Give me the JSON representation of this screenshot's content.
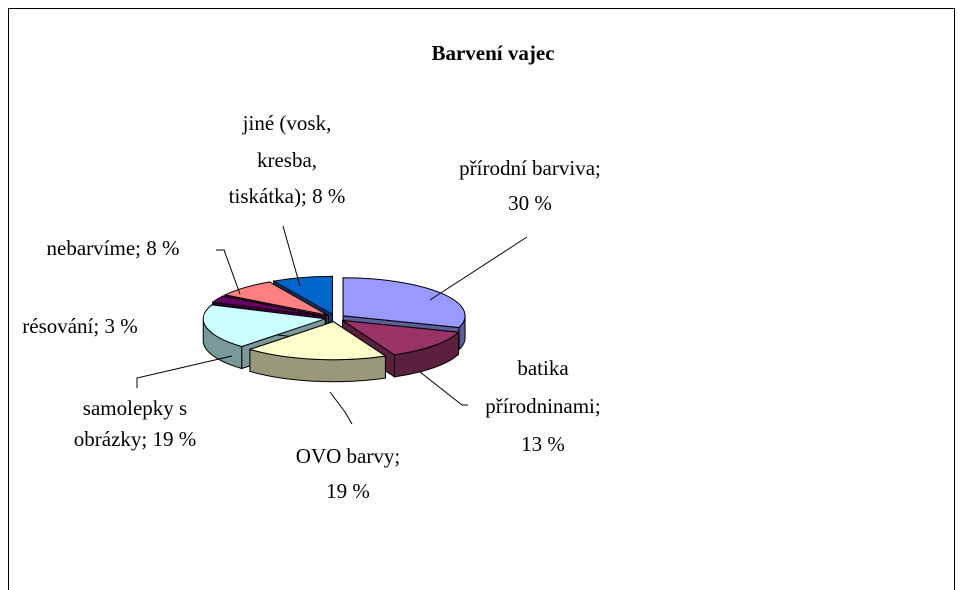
{
  "chart_data": {
    "type": "pie",
    "title": "Barvení vajec",
    "labels": [
      [
        "přírodní barviva;",
        "30 %"
      ],
      [
        "batika",
        "přírodninami;",
        "13 %"
      ],
      [
        "OVO barvy;",
        "19 %"
      ],
      [
        "samolepky s",
        "obrázky; 19 %"
      ],
      [
        "résování; 3 %"
      ],
      [
        "nebarvíme; 8 %"
      ],
      [
        "jiné (vosk,",
        "kresba,",
        "tiskátka); 8 %"
      ]
    ],
    "values": [
      30,
      13,
      19,
      19,
      3,
      8,
      8
    ],
    "colors": [
      "#9999ff",
      "#993366",
      "#ffffcc",
      "#ccffff",
      "#660066",
      "#ff8080",
      "#0066cc"
    ],
    "three_d": true,
    "exploded": true
  }
}
